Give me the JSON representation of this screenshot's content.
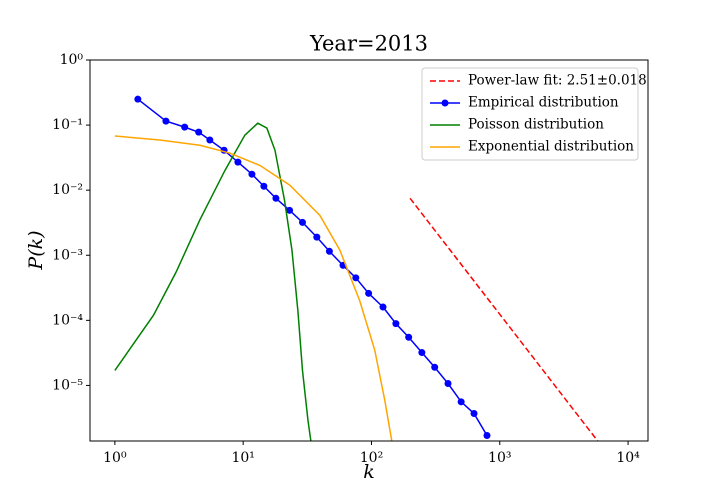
{
  "chart_data": {
    "type": "line",
    "title": "Year=2013",
    "x_label": "k",
    "y_label": "P(k)",
    "xscale": "log",
    "yscale": "log",
    "xlim": [
      0.64,
      14300
    ],
    "ylim": [
      1.4e-06,
      1
    ],
    "xticks": [
      {
        "value": 1,
        "label": "10⁰"
      },
      {
        "value": 10,
        "label": "10¹"
      },
      {
        "value": 100,
        "label": "10²"
      },
      {
        "value": 1000,
        "label": "10³"
      },
      {
        "value": 10000,
        "label": "10⁴"
      }
    ],
    "yticks": [
      {
        "value": 1,
        "label": "10⁰"
      },
      {
        "value": 0.1,
        "label": "10⁻¹"
      },
      {
        "value": 0.01,
        "label": "10⁻²"
      },
      {
        "value": 0.001,
        "label": "10⁻³"
      },
      {
        "value": 0.0001,
        "label": "10⁻⁴"
      },
      {
        "value": 1e-05,
        "label": "10⁻⁵"
      }
    ],
    "legend": "upper right",
    "series": [
      {
        "name": "Power-law fit: 2.51±0.018",
        "color": "#ff0000",
        "dashed": true,
        "marker": false,
        "x": [
          200,
          5800
        ],
        "values": [
          0.0075,
          1.4e-06
        ]
      },
      {
        "name": "Empirical distribution",
        "color": "#0000ff",
        "dashed": false,
        "marker": true,
        "x": [
          1.51,
          2.5,
          3.5,
          4.5,
          5.5,
          7.1,
          9.1,
          11.7,
          14.5,
          18,
          23,
          29,
          37.5,
          47,
          60,
          75.5,
          95,
          123,
          155,
          195,
          247,
          311,
          395,
          500,
          630,
          795
        ],
        "values": [
          0.25,
          0.115,
          0.093,
          0.078,
          0.059,
          0.041,
          0.027,
          0.0176,
          0.0115,
          0.0075,
          0.0049,
          0.0032,
          0.0019,
          0.00115,
          0.0007,
          0.00045,
          0.00026,
          0.00016,
          8.9e-05,
          5.5e-05,
          3.2e-05,
          1.9e-05,
          1.07e-05,
          5.6e-06,
          3.7e-06,
          1.7e-06
        ]
      },
      {
        "name": "Poisson distribution",
        "color": "#008000",
        "dashed": false,
        "marker": false,
        "x": [
          1,
          2,
          3,
          4.6,
          7.2,
          10.3,
          13,
          15.3,
          17.7,
          21,
          24,
          26.7,
          29,
          32,
          33.7
        ],
        "values": [
          1.7e-05,
          0.00012,
          0.00055,
          0.0035,
          0.02,
          0.07,
          0.107,
          0.09,
          0.041,
          0.007,
          0.0012,
          0.00014,
          1.7e-05,
          2.9e-06,
          1.4e-06
        ]
      },
      {
        "name": "Exponential distribution",
        "color": "#ffa500",
        "dashed": false,
        "marker": false,
        "x": [
          1,
          2.24,
          4.6,
          7.9,
          13.5,
          23,
          39.6,
          56.7,
          81,
          106,
          127,
          144
        ],
        "values": [
          0.068,
          0.059,
          0.049,
          0.037,
          0.024,
          0.012,
          0.0041,
          0.0012,
          0.0002,
          3.5e-05,
          5.9e-06,
          1.4e-06
        ]
      }
    ]
  }
}
